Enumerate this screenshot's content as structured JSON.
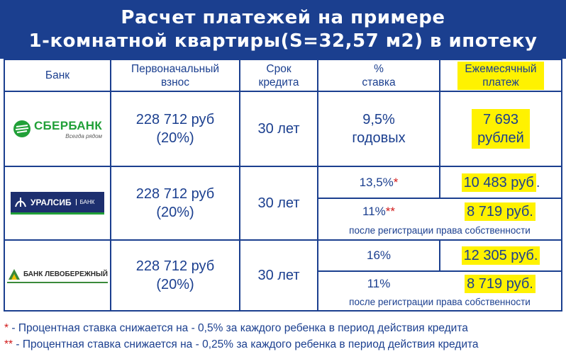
{
  "title": {
    "line1": "Расчет платежей на примере",
    "line2": "1-комнатной квартиры(S=32,57 м2) в ипотеку"
  },
  "headers": {
    "bank": "Банк",
    "down_payment": "Первоначальный взнос",
    "term": "Срок кредита",
    "rate": "% ставка",
    "monthly": "Ежемесячный платеж"
  },
  "banks": [
    {
      "logo_text": "СБЕРБАНК",
      "logo_slogan": "Всегда рядом",
      "down_payment": "228 712 руб",
      "down_percent": "(20%)",
      "term": "30 лет",
      "rate_value": "9,5%",
      "rate_unit": "годовых",
      "payment_value": "7 693",
      "payment_unit": "рублей"
    },
    {
      "logo_text": "УРАЛСИБ",
      "logo_sub": "БАНК",
      "down_payment": "228 712 руб",
      "down_percent": "(20%)",
      "term": "30 лет",
      "rate1": "13,5%",
      "rate1_mark": "*",
      "payment1": "10 483 руб",
      "payment1_tail": ".",
      "rate2": "11%",
      "rate2_mark": "**",
      "payment2": "8 719 руб.",
      "note": "после регистрации права собственности"
    },
    {
      "logo_text": "БАНК ЛЕВОБЕРЕЖНЫЙ",
      "down_payment": "228 712 руб",
      "down_percent": "(20%)",
      "term": "30 лет",
      "rate1": "16%",
      "payment1": "12 305 руб.",
      "rate2": "11%",
      "payment2": "8 719 руб.",
      "note": "после регистрации права собственности"
    }
  ],
  "footnotes": [
    {
      "mark": "*",
      "text": " - Процентная ставка снижается на - 0,5% за каждого ребенка в период действия кредита"
    },
    {
      "mark": "**",
      "text": " - Процентная ставка снижается на - 0,25% за каждого ребенка в период действия кредита"
    }
  ],
  "colors": {
    "brand_blue": "#1b3f8f",
    "highlight": "#fff200",
    "star_red": "#d11a1a",
    "sber_green": "#21a038",
    "uralsib_navy": "#1d2f6f",
    "levo_green": "#3a8a3a"
  }
}
